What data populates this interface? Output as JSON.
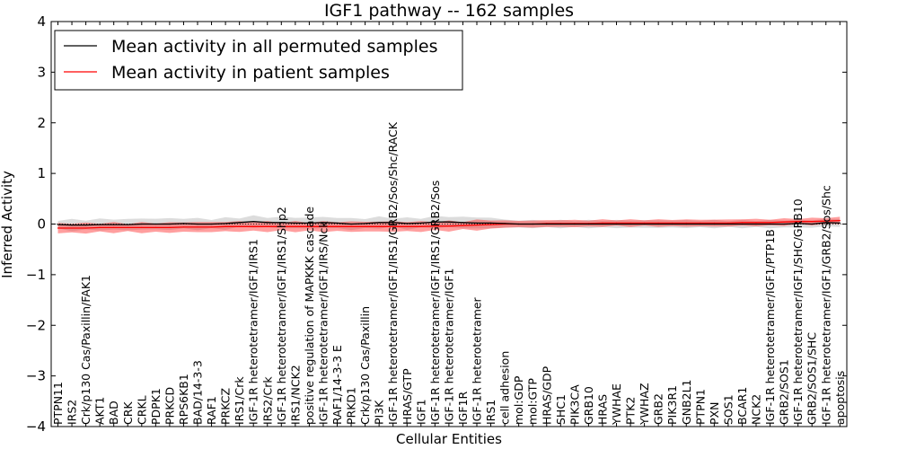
{
  "chart_data": {
    "type": "line",
    "title": "IGF1 pathway -- 162 samples",
    "xlabel": "Cellular Entities",
    "ylabel": "Inferred Activity",
    "ylim": [
      -4,
      4
    ],
    "yticks": [
      4,
      3,
      2,
      1,
      0,
      -1,
      -2,
      -3,
      -4
    ],
    "ytick_labels": [
      "4",
      "3",
      "2",
      "1",
      "0",
      "−1",
      "−2",
      "−3",
      "−4"
    ],
    "legend_position": "top-left",
    "grid": false,
    "categories": [
      "PTPN11",
      "IRS2",
      "Crk/p130 Cas/Paxillin/FAK1",
      "AKT1",
      "BAD",
      "CRK",
      "CRKL",
      "PDPK1",
      "PRKCD",
      "RPS6KB1",
      "BAD/14-3-3",
      "RAF1",
      "PRKCZ",
      "IRS1/Crk",
      "IGF-1R heterotetramer/IGF1/IRS1",
      "IRS2/Crk",
      "IGF-1R heterotetramer/IGF1/IRS1/Shp2",
      "IRS1/NCK2",
      "positive regulation of MAPKKK cascade",
      "IGF-1R heterotetramer/IGF1/IRS/Nck",
      "RAF1/14-3-3 E",
      "PRKD1",
      "Crk/p130 Cas/Paxillin",
      "PI3K",
      "IGF-1R heterotetramer/IGF1/IRS1/GRB2/Sos/Shc/RACK",
      "HRAS/GTP",
      "IGF1",
      "IGF-1R heterotetramer/IGF1/IRS1/GRB2/Sos",
      "IGF-1R heterotetramer/IGF1",
      "IGF1R",
      "IGF-1R heterotetramer",
      "IRS1",
      "cell adhesion",
      "mol:GDP",
      "mol:GTP",
      "HRAS/GDP",
      "SHC1",
      "PIK3CA",
      "GRB10",
      "HRAS",
      "YWHAE",
      "PTK2",
      "YWHAZ",
      "GRB2",
      "PIK3R1",
      "GNB2L1",
      "PTPN1",
      "PXN",
      "SOS1",
      "BCAR1",
      "NCK2",
      "IGF-1R heterotetramer/IGF1/PTP1B",
      "GRB2/SOS1",
      "IGF-1R heterotetramer/IGF1/SHC/GRB10",
      "GRB2/SOS1/SHC",
      "IGF-1R heterotetramer/IGF1/GRB2/Sos/Shc",
      "apoptosis"
    ],
    "series": [
      {
        "name": "Mean activity in all permuted samples",
        "color": "#000000",
        "values": [
          -0.01,
          -0.02,
          -0.02,
          -0.01,
          -0.01,
          -0.01,
          0.0,
          0.0,
          0.0,
          0.01,
          0.0,
          0.0,
          0.01,
          0.03,
          0.05,
          0.03,
          0.03,
          0.02,
          0.02,
          0.03,
          0.02,
          0.0,
          0.01,
          0.03,
          0.03,
          0.01,
          0.02,
          0.04,
          0.04,
          0.03,
          0.02,
          0.02,
          0.01,
          0.0,
          0.0,
          0.0,
          0.0,
          0.0,
          0.0,
          0.0,
          0.0,
          0.0,
          0.0,
          0.0,
          0.0,
          0.0,
          0.0,
          0.0,
          0.0,
          0.0,
          0.0,
          0.0,
          0.0,
          0.01,
          0.0,
          0.03,
          0.02
        ],
        "band": 0.08
      },
      {
        "name": "Mean activity in patient samples",
        "color": "#ff0000",
        "values": [
          -0.08,
          -0.08,
          -0.08,
          -0.07,
          -0.07,
          -0.07,
          -0.07,
          -0.07,
          -0.07,
          -0.06,
          -0.06,
          -0.06,
          -0.05,
          -0.05,
          -0.05,
          -0.05,
          -0.05,
          -0.05,
          -0.05,
          -0.05,
          -0.05,
          -0.05,
          -0.05,
          -0.05,
          -0.05,
          -0.05,
          -0.05,
          -0.04,
          -0.04,
          -0.03,
          -0.02,
          -0.01,
          0.0,
          0.0,
          0.0,
          0.01,
          0.01,
          0.01,
          0.01,
          0.02,
          0.02,
          0.02,
          0.02,
          0.02,
          0.02,
          0.02,
          0.02,
          0.02,
          0.02,
          0.03,
          0.03,
          0.03,
          0.04,
          0.05,
          0.05,
          0.06,
          0.07
        ],
        "band": 0.07
      }
    ]
  }
}
